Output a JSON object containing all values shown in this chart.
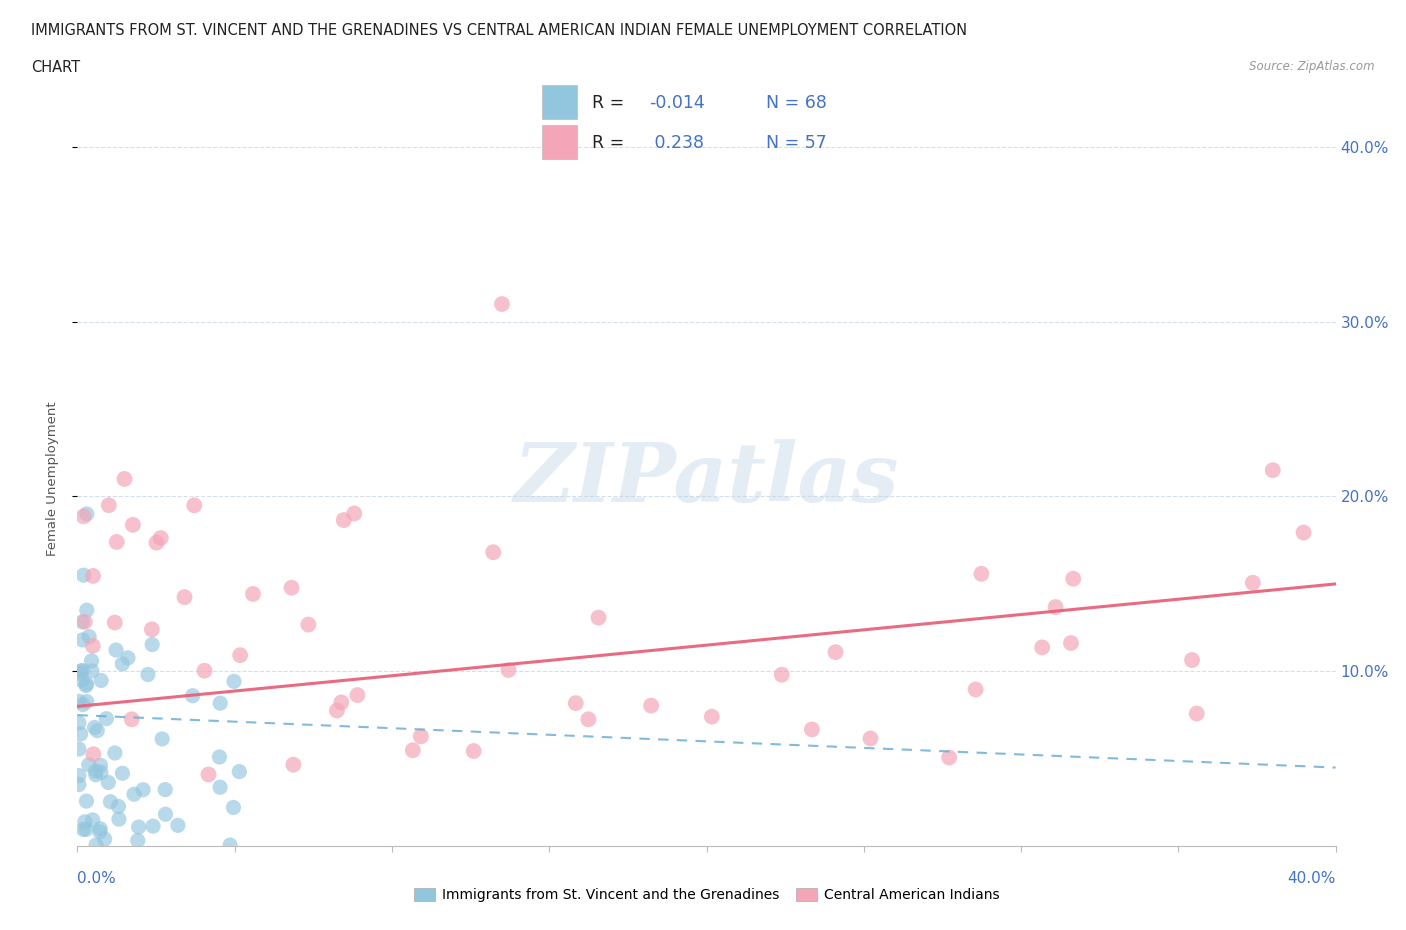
{
  "title_line1": "IMMIGRANTS FROM ST. VINCENT AND THE GRENADINES VS CENTRAL AMERICAN INDIAN FEMALE UNEMPLOYMENT CORRELATION",
  "title_line2": "CHART",
  "source": "Source: ZipAtlas.com",
  "ylabel": "Female Unemployment",
  "xlim": [
    0.0,
    0.4
  ],
  "ylim": [
    0.0,
    0.42
  ],
  "ytick_vals": [
    0.1,
    0.2,
    0.3,
    0.4
  ],
  "color_blue": "#92c5de",
  "color_blue_line": "#6baed6",
  "color_pink": "#f4a6b8",
  "color_pink_line": "#e8637a",
  "color_text_blue": "#4472c4",
  "watermark_text": "ZIPatlas",
  "grid_color": "#c8d8e8",
  "bg_color": "#ffffff",
  "legend_text_color": "#4472c4",
  "legend_r_color": "#333333",
  "blue_r": "-0.014",
  "blue_n": "68",
  "pink_r": "0.238",
  "pink_n": "57",
  "legend_label_blue": "Immigrants from St. Vincent and the Grenadines",
  "legend_label_pink": "Central American Indians",
  "seed_blue": 42,
  "seed_pink": 99
}
